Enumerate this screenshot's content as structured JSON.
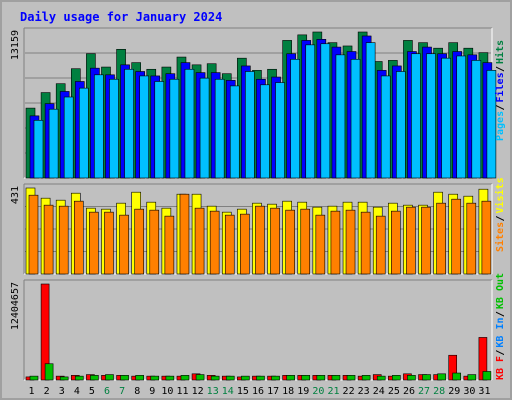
{
  "title": "Daily usage for January 2024",
  "chart_data": [
    {
      "type": "bar",
      "panel": "hits-files-pages",
      "max_label": "13159",
      "legend": [
        "Pages",
        "Files",
        "Hits"
      ],
      "legend_colors": [
        "#00c0ff",
        "#0000ff",
        "#008040"
      ],
      "categories": [
        1,
        2,
        3,
        4,
        5,
        6,
        7,
        8,
        9,
        10,
        11,
        12,
        13,
        14,
        15,
        16,
        17,
        18,
        19,
        20,
        21,
        22,
        23,
        24,
        25,
        26,
        27,
        28,
        29,
        30,
        31
      ],
      "ylim": [
        0,
        13159
      ],
      "series": [
        {
          "name": "Hits",
          "values": [
            6300,
            7700,
            8500,
            9850,
            11200,
            10000,
            11600,
            10400,
            9800,
            10000,
            10900,
            10200,
            10300,
            9400,
            10800,
            9700,
            9800,
            12400,
            12900,
            13159,
            12200,
            11900,
            13159,
            10500,
            10600,
            12400,
            12200,
            11700,
            12200,
            11700,
            11300
          ]
        },
        {
          "name": "Files",
          "values": [
            5600,
            6700,
            7800,
            8700,
            9900,
            9300,
            10200,
            9600,
            9200,
            9400,
            10400,
            9500,
            9500,
            8800,
            10100,
            8900,
            9100,
            11200,
            12400,
            12500,
            11800,
            11400,
            12800,
            9700,
            10100,
            11400,
            11800,
            11200,
            11400,
            11100,
            10400
          ]
        },
        {
          "name": "Pages",
          "values": [
            5200,
            6200,
            7300,
            8100,
            9300,
            8900,
            9800,
            9200,
            8700,
            8900,
            9800,
            9000,
            8900,
            8300,
            9600,
            8400,
            8600,
            10700,
            12000,
            12100,
            11100,
            10700,
            12200,
            9200,
            9600,
            11200,
            11200,
            10800,
            11000,
            10600,
            9700
          ]
        }
      ]
    },
    {
      "type": "bar",
      "panel": "visits-sites",
      "max_label": "431",
      "legend": [
        "Sites",
        "Visits"
      ],
      "legend_colors": [
        "#ff8000",
        "#ffff00"
      ],
      "categories": [
        1,
        2,
        3,
        4,
        5,
        6,
        7,
        8,
        9,
        10,
        11,
        12,
        13,
        14,
        15,
        16,
        17,
        18,
        19,
        20,
        21,
        22,
        23,
        24,
        25,
        26,
        27,
        28,
        29,
        30,
        31
      ],
      "ylim": [
        0,
        431
      ],
      "series": [
        {
          "name": "Visits",
          "values": [
            431,
            380,
            370,
            405,
            330,
            325,
            355,
            410,
            360,
            330,
            400,
            400,
            340,
            310,
            325,
            355,
            350,
            365,
            360,
            335,
            340,
            360,
            360,
            335,
            355,
            345,
            345,
            410,
            400,
            390,
            425
          ]
        },
        {
          "name": "Sites",
          "values": [
            395,
            345,
            340,
            365,
            310,
            310,
            295,
            325,
            320,
            290,
            400,
            330,
            315,
            295,
            300,
            340,
            330,
            320,
            325,
            295,
            315,
            320,
            310,
            290,
            315,
            335,
            335,
            355,
            375,
            355,
            365
          ]
        }
      ]
    },
    {
      "type": "bar",
      "panel": "kbytes",
      "max_label": "12404657",
      "legend": [
        "KB F",
        "KB In",
        "KB Out"
      ],
      "legend_colors": [
        "#ff0000",
        "#0080ff",
        "#00c000"
      ],
      "categories": [
        1,
        2,
        3,
        4,
        5,
        6,
        7,
        8,
        9,
        10,
        11,
        12,
        13,
        14,
        15,
        16,
        17,
        18,
        19,
        20,
        21,
        22,
        23,
        24,
        25,
        26,
        27,
        28,
        29,
        30,
        31
      ],
      "ylim": [
        0,
        12404657
      ],
      "series": [
        {
          "name": "KB F",
          "values": [
            400000,
            12404657,
            500000,
            600000,
            700000,
            600000,
            600000,
            500000,
            500000,
            500000,
            500000,
            800000,
            600000,
            500000,
            400000,
            500000,
            500000,
            600000,
            600000,
            600000,
            600000,
            600000,
            500000,
            700000,
            500000,
            800000,
            700000,
            700000,
            3200000,
            500000,
            5500000
          ]
        },
        {
          "name": "KB Out",
          "values": [
            500000,
            2100000,
            400000,
            500000,
            600000,
            700000,
            600000,
            600000,
            500000,
            500000,
            600000,
            700000,
            500000,
            500000,
            500000,
            500000,
            500000,
            600000,
            600000,
            600000,
            600000,
            600000,
            600000,
            500000,
            600000,
            600000,
            700000,
            800000,
            900000,
            700000,
            1100000
          ]
        }
      ]
    }
  ],
  "x_label_colors": {
    "weekday": "#000000",
    "weekend": "#008040"
  },
  "weekend_days": [
    6,
    7,
    13,
    14,
    20,
    21,
    27,
    28
  ]
}
